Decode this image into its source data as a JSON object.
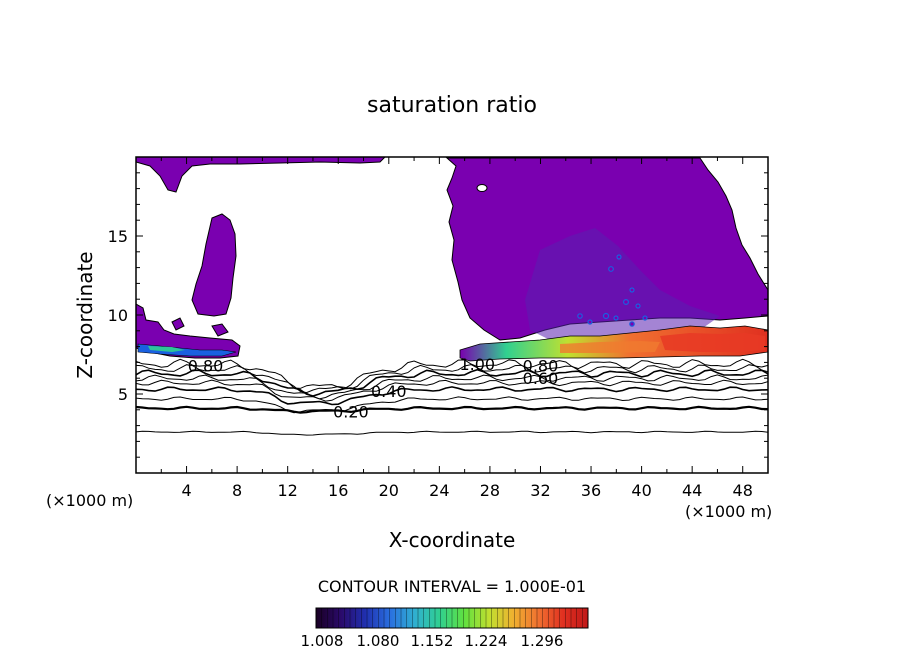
{
  "chart_data": {
    "type": "heatmap",
    "title": "saturation ratio",
    "xlabel": "X-coordinate",
    "ylabel": "Z-coordinate",
    "x_scale_label": "(×1000 m)",
    "y_scale_label": "(×1000 m)",
    "xlim": [
      0,
      50
    ],
    "ylim": [
      0,
      20
    ],
    "x_ticks": [
      4,
      8,
      12,
      16,
      20,
      24,
      28,
      32,
      36,
      40,
      44,
      48
    ],
    "y_ticks": [
      5,
      10,
      15
    ],
    "contour_interval_text": "CONTOUR INTERVAL = 1.000E-01",
    "contour_labels": [
      {
        "text": "0.80",
        "x": 5.5,
        "y": 6.8
      },
      {
        "text": "0.40",
        "x": 20.0,
        "y": 5.2
      },
      {
        "text": "0.20",
        "x": 17.0,
        "y": 3.9
      },
      {
        "text": "1.00",
        "x": 27.0,
        "y": 6.9
      },
      {
        "text": "0.80",
        "x": 32.0,
        "y": 6.8
      },
      {
        "text": "0.60",
        "x": 32.0,
        "y": 6.0
      }
    ],
    "colorbar": {
      "min": 1.008,
      "max": 1.296,
      "tick_labels": [
        "1.008",
        "1.080",
        "1.152",
        "1.224",
        "1.296"
      ],
      "colors": [
        "#1a0024",
        "#2a0a6a",
        "#2030b0",
        "#2a70e0",
        "#30b0d0",
        "#30d090",
        "#60e040",
        "#c0e030",
        "#f0b030",
        "#f07030",
        "#e03020",
        "#c01818"
      ]
    },
    "region_color": "#7a00b0"
  }
}
